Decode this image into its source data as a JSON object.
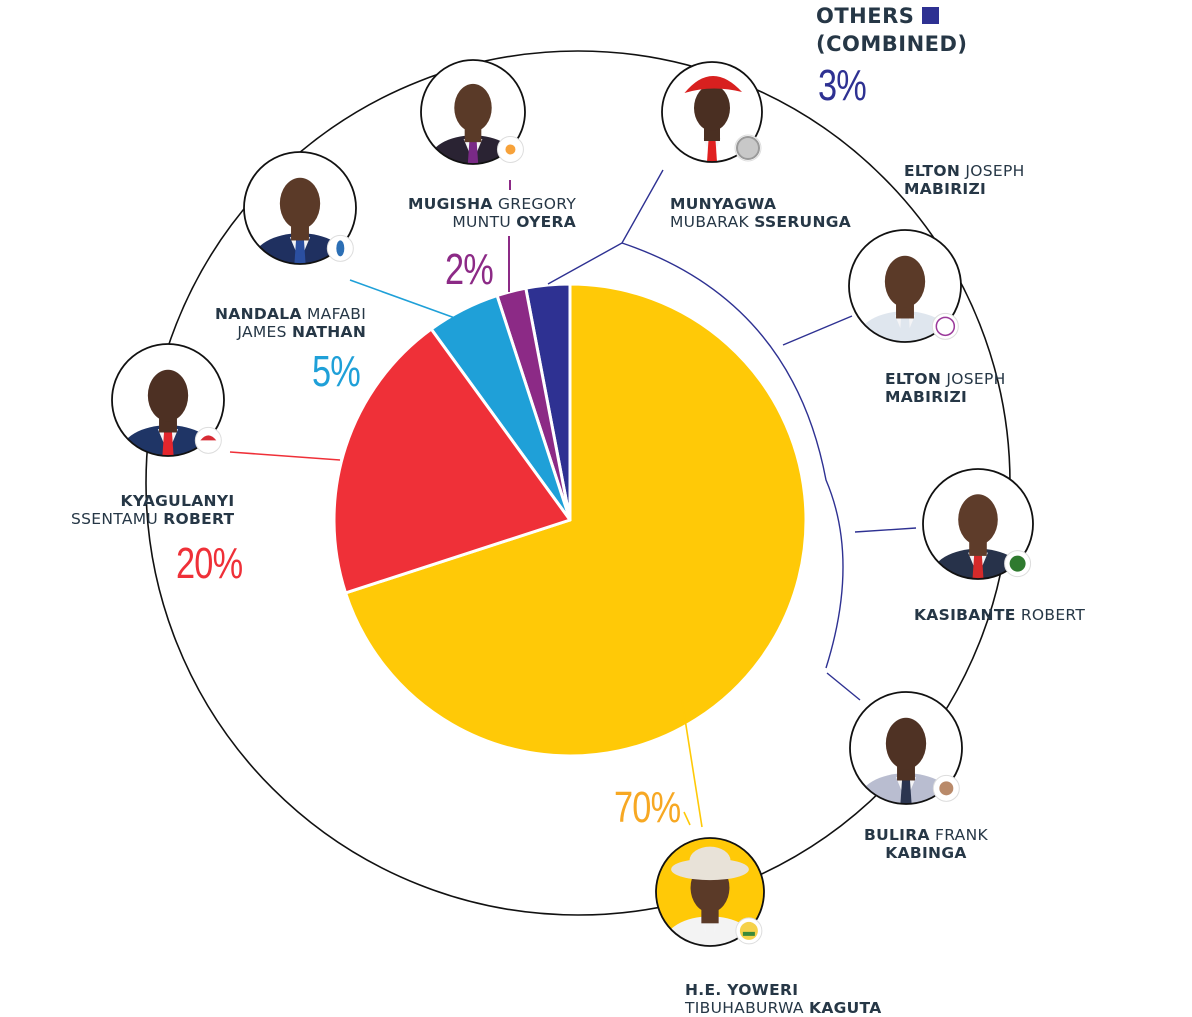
{
  "chart_data": {
    "type": "pie",
    "title": "",
    "slices": [
      {
        "key": "museveni",
        "label": "H.E. YOWERI TIBUHABURWA KAGUTA",
        "value": 70,
        "display": "70%",
        "color": "#ffc907"
      },
      {
        "key": "kyagulanyi",
        "label": "KYAGULANYI SSENTAMU ROBERT",
        "value": 20,
        "display": "20%",
        "color": "#ef3038"
      },
      {
        "key": "nandala",
        "label": "NANDALA MAFABI JAMES NATHAN",
        "value": 5,
        "display": "5%",
        "color": "#1fa0d8"
      },
      {
        "key": "mugisha",
        "label": "MUGISHA GREGORY MUNTU OYERA",
        "value": 2,
        "display": "2%",
        "color": "#8c2a86"
      },
      {
        "key": "others",
        "label": "OTHERS (COMBINED)",
        "value": 3,
        "display": "3%",
        "color": "#2e3192"
      }
    ],
    "start": "top",
    "direction": "counterclockwise-from-top for minor slices; main slice clockwise",
    "legend": "top-right"
  },
  "others": {
    "title_line1": "OTHERS",
    "title_line2": "(COMBINED)",
    "value": "3%",
    "members": [
      "munyagwa",
      "elton",
      "kasibante",
      "bulira"
    ]
  },
  "candidates": {
    "museveni": {
      "name_parts": [
        [
          "H.E. YOWERI",
          "b"
        ],
        [
          "\n",
          ""
        ],
        [
          "TIBUHABURWA ",
          "n"
        ],
        [
          "KAGUTA",
          "b"
        ]
      ],
      "pct": "70%",
      "photo_bg": "#ffc907",
      "badge": "nrm-emblem-icon"
    },
    "kyagulanyi": {
      "name_parts": [
        [
          "KYAGULANYI",
          "b"
        ],
        [
          "\n",
          ""
        ],
        [
          "SSENTAMU ",
          "n"
        ],
        [
          "ROBERT",
          "b"
        ]
      ],
      "pct": "20%",
      "badge": "nup-umbrella-icon"
    },
    "nandala": {
      "name_parts": [
        [
          "NANDALA",
          "b"
        ],
        [
          " MAFABI",
          "n"
        ],
        [
          "\n",
          ""
        ],
        [
          "JAMES ",
          "n"
        ],
        [
          "NATHAN",
          "b"
        ]
      ],
      "pct": "5%",
      "badge": "fdc-emblem-icon"
    },
    "mugisha": {
      "name_parts": [
        [
          "MUGISHA",
          "b"
        ],
        [
          " GREGORY",
          "n"
        ],
        [
          "\n",
          ""
        ],
        [
          "MUNTU ",
          "n"
        ],
        [
          "OYERA",
          "b"
        ]
      ],
      "pct": "2%",
      "badge": "bulb-icon"
    },
    "munyagwa": {
      "name_parts": [
        [
          "MUNYAGWA",
          "b"
        ],
        [
          "\n",
          ""
        ],
        [
          "MUBARAK ",
          "n"
        ],
        [
          "SSERUNGA",
          "b"
        ]
      ],
      "badge": "coin-icon"
    },
    "elton_top": {
      "name_parts": [
        [
          "ELTON",
          "b"
        ],
        [
          " JOSEPH",
          "n"
        ],
        [
          "\n",
          ""
        ],
        [
          "MABIRIZI",
          "b"
        ]
      ]
    },
    "elton": {
      "name_parts": [
        [
          "ELTON",
          "b"
        ],
        [
          " JOSEPH",
          "n"
        ],
        [
          "\n",
          ""
        ],
        [
          "MABIRIZI",
          "b"
        ]
      ],
      "badge": "cp-emblem-icon"
    },
    "kasibante": {
      "name_parts": [
        [
          "KASIBANTE",
          "b"
        ],
        [
          " ROBERT",
          "n"
        ]
      ],
      "badge": "nrp-emblem-icon"
    },
    "bulira": {
      "name_parts": [
        [
          "BULIRA",
          "b"
        ],
        [
          " FRANK",
          "n"
        ],
        [
          "\n",
          ""
        ],
        [
          "KABINGA",
          "b"
        ]
      ],
      "badge": "hands-emblem-icon"
    }
  }
}
